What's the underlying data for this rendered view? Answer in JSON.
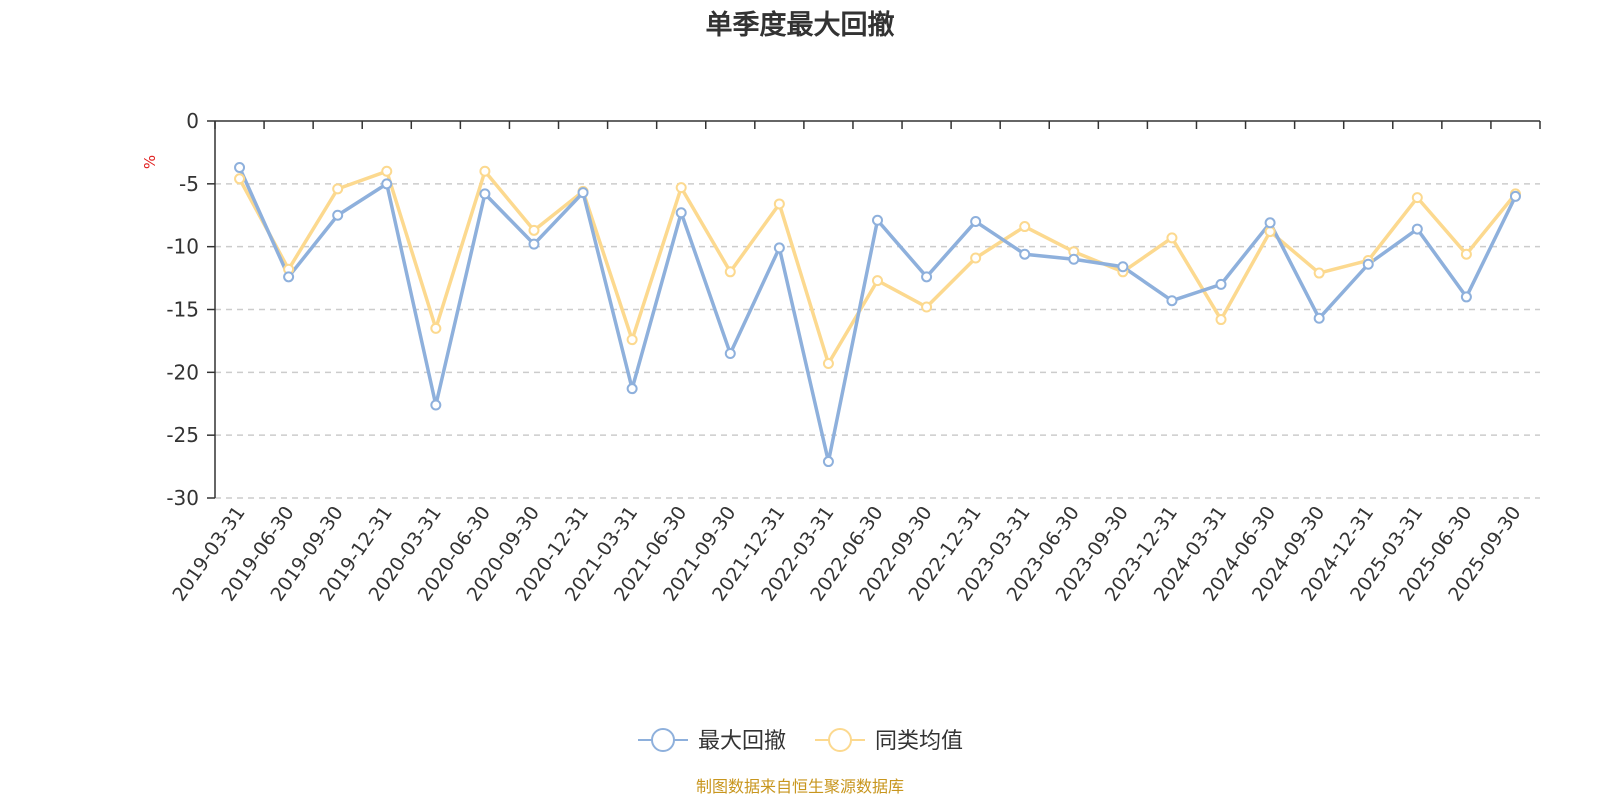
{
  "chart_data": {
    "type": "line",
    "title": "单季度最大回撤",
    "ylabel": "%",
    "ylim": [
      -30,
      0
    ],
    "yticks": [
      0,
      -5,
      -10,
      -15,
      -20,
      -25,
      -30
    ],
    "grid": true,
    "legend_position": "bottom-center",
    "categories": [
      "2019-03-31",
      "2019-06-30",
      "2019-09-30",
      "2019-12-31",
      "2020-03-31",
      "2020-06-30",
      "2020-09-30",
      "2020-12-31",
      "2021-03-31",
      "2021-06-30",
      "2021-09-30",
      "2021-12-31",
      "2022-03-31",
      "2022-06-30",
      "2022-09-30",
      "2022-12-31",
      "2023-03-31",
      "2023-06-30",
      "2023-09-30",
      "2023-12-31",
      "2024-03-31",
      "2024-06-30",
      "2024-09-30",
      "2024-12-31",
      "2025-03-31",
      "2025-06-30",
      "2025-09-30"
    ],
    "series": [
      {
        "name": "最大回撤",
        "color": "#8eb0dc",
        "values": [
          -3.7,
          -12.4,
          -7.5,
          -5.0,
          -22.6,
          -5.8,
          -9.8,
          -5.7,
          -21.3,
          -7.3,
          -18.5,
          -10.1,
          -27.1,
          -7.9,
          -12.4,
          -8.0,
          -10.6,
          -11.0,
          -11.6,
          -14.3,
          -13.0,
          -8.1,
          -15.7,
          -11.4,
          -8.6,
          -14.0,
          -6.0
        ]
      },
      {
        "name": "同类均值",
        "color": "#fcd98f",
        "values": [
          -4.6,
          -11.8,
          -5.4,
          -4.0,
          -16.5,
          -4.0,
          -8.7,
          -5.6,
          -17.4,
          -5.3,
          -12.0,
          -6.6,
          -19.3,
          -12.7,
          -14.8,
          -10.9,
          -8.4,
          -10.4,
          -12.0,
          -9.3,
          -15.8,
          -8.8,
          -12.1,
          -11.1,
          -6.1,
          -10.6,
          -5.8
        ]
      }
    ]
  },
  "source_note": "制图数据来自恒生聚源数据库"
}
